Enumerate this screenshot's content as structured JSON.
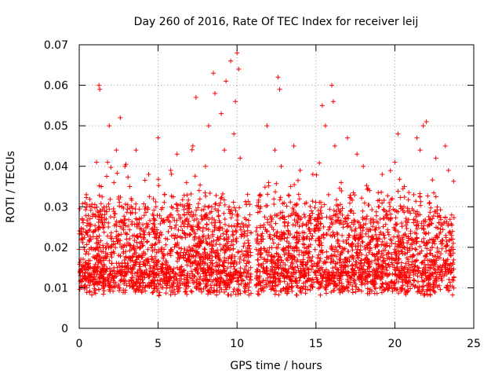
{
  "chart_data": {
    "type": "scatter",
    "title": "Day 260 of 2016, Rate Of TEC Index for receiver leij",
    "xlabel": "GPS time / hours",
    "ylabel": "ROTI / TECUs",
    "xlim": [
      0,
      25
    ],
    "ylim": [
      0,
      0.07
    ],
    "xticks": [
      0,
      5,
      10,
      15,
      20,
      25
    ],
    "yticks": [
      0,
      0.01,
      0.02,
      0.03,
      0.04,
      0.05,
      0.06,
      0.07
    ],
    "xtick_labels": [
      "0",
      "5",
      "10",
      "15",
      "20",
      "25"
    ],
    "ytick_labels": [
      "0",
      "0.01",
      "0.02",
      "0.03",
      "0.04",
      "0.05",
      "0.06",
      "0.07"
    ],
    "grid": true,
    "marker": "plus",
    "color": "#ff0000",
    "data_gap_hours": [
      10.9,
      11.2
    ],
    "series": [
      {
        "name": "ROTI",
        "x": [
          0.05,
          0.2,
          0.3,
          0.45,
          0.6,
          0.75,
          0.9,
          1.0,
          1.1,
          1.2,
          1.25,
          1.3,
          1.4,
          1.55,
          1.7,
          1.8,
          1.9,
          2.0,
          2.1,
          2.2,
          2.35,
          2.5,
          2.6,
          2.7,
          2.8,
          2.9,
          3.0,
          3.2,
          3.4,
          3.6,
          3.8,
          4.0,
          4.2,
          4.4,
          4.6,
          4.8,
          5.0,
          5.2,
          5.4,
          5.6,
          5.8,
          6.0,
          6.2,
          6.4,
          6.6,
          6.8,
          7.0,
          7.2,
          7.4,
          7.5,
          7.6,
          7.8,
          8.0,
          8.2,
          8.4,
          8.5,
          8.6,
          8.8,
          9.0,
          9.2,
          9.3,
          9.5,
          9.6,
          9.8,
          9.9,
          10.0,
          10.1,
          10.2,
          10.4,
          10.6,
          10.8,
          11.3,
          11.5,
          11.7,
          11.9,
          12.0,
          12.2,
          12.4,
          12.6,
          12.7,
          12.8,
          13.0,
          13.2,
          13.4,
          13.6,
          13.8,
          14.0,
          14.2,
          14.4,
          14.6,
          14.8,
          15.0,
          15.2,
          15.4,
          15.6,
          15.8,
          16.0,
          16.1,
          16.2,
          16.4,
          16.6,
          16.8,
          17.0,
          17.2,
          17.4,
          17.6,
          17.8,
          18.0,
          18.2,
          18.4,
          18.6,
          18.8,
          19.0,
          19.2,
          19.4,
          19.6,
          19.8,
          20.0,
          20.2,
          20.4,
          20.6,
          20.8,
          21.0,
          21.2,
          21.4,
          21.6,
          21.8,
          22.0,
          22.2,
          22.4,
          22.6,
          22.8,
          23.0,
          23.2,
          23.4,
          23.6,
          23.7
        ],
        "y": [
          0.014,
          0.027,
          0.02,
          0.033,
          0.016,
          0.022,
          0.012,
          0.028,
          0.041,
          0.018,
          0.06,
          0.059,
          0.035,
          0.025,
          0.014,
          0.041,
          0.05,
          0.02,
          0.013,
          0.036,
          0.044,
          0.018,
          0.052,
          0.03,
          0.012,
          0.04,
          0.022,
          0.035,
          0.015,
          0.044,
          0.026,
          0.012,
          0.03,
          0.038,
          0.017,
          0.025,
          0.047,
          0.014,
          0.033,
          0.022,
          0.039,
          0.011,
          0.043,
          0.027,
          0.018,
          0.036,
          0.013,
          0.045,
          0.057,
          0.021,
          0.034,
          0.016,
          0.04,
          0.05,
          0.026,
          0.063,
          0.058,
          0.014,
          0.053,
          0.044,
          0.061,
          0.03,
          0.066,
          0.048,
          0.056,
          0.068,
          0.064,
          0.042,
          0.025,
          0.016,
          0.012,
          0.022,
          0.03,
          0.014,
          0.05,
          0.036,
          0.018,
          0.044,
          0.062,
          0.059,
          0.04,
          0.026,
          0.013,
          0.035,
          0.045,
          0.021,
          0.039,
          0.017,
          0.031,
          0.024,
          0.038,
          0.014,
          0.028,
          0.055,
          0.05,
          0.033,
          0.06,
          0.056,
          0.045,
          0.021,
          0.036,
          0.015,
          0.047,
          0.029,
          0.012,
          0.043,
          0.025,
          0.04,
          0.018,
          0.034,
          0.022,
          0.013,
          0.03,
          0.038,
          0.016,
          0.027,
          0.021,
          0.041,
          0.048,
          0.019,
          0.035,
          0.014,
          0.024,
          0.033,
          0.047,
          0.044,
          0.05,
          0.051,
          0.031,
          0.018,
          0.042,
          0.026,
          0.015,
          0.045,
          0.039,
          0.028,
          0.021
        ]
      }
    ]
  }
}
